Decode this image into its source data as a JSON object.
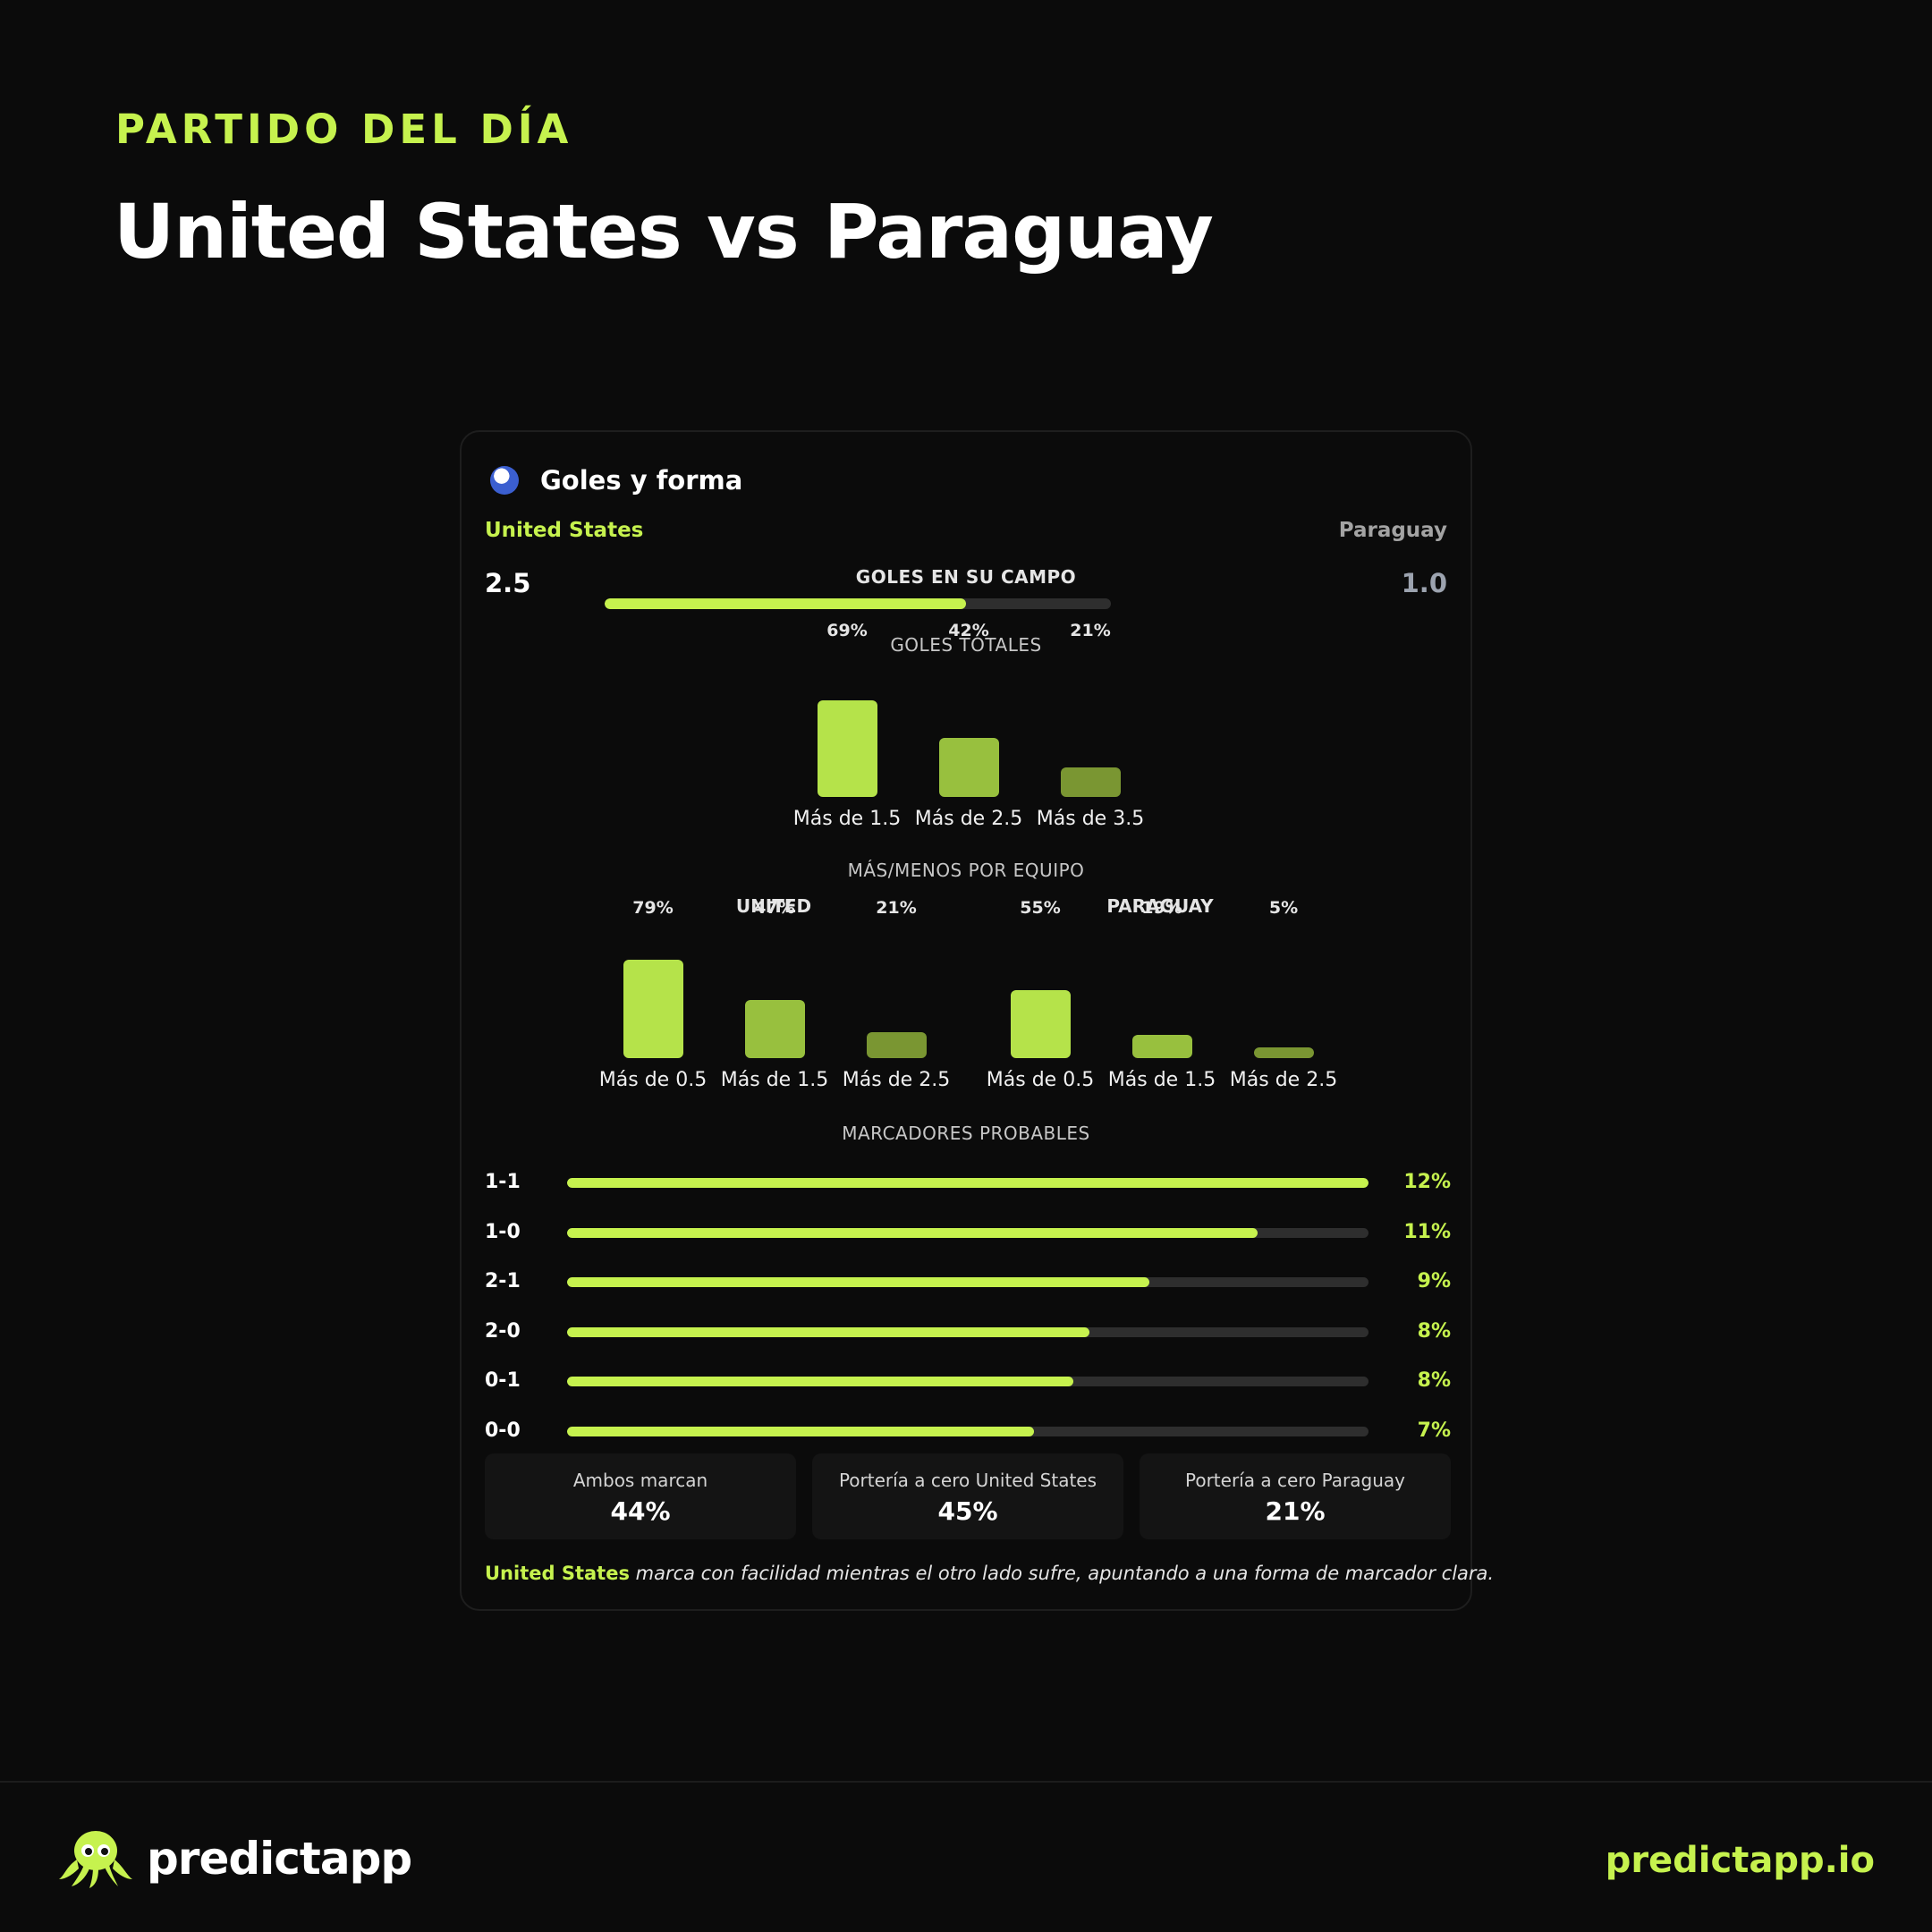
{
  "header": {
    "eyebrow": "PARTIDO DEL DÍA",
    "title": "United States vs Paraguay"
  },
  "card": {
    "title": "Goles y forma",
    "home_team": "United States",
    "away_team": "Paraguay",
    "goals_label": "GOLES EN SU CAMPO",
    "home_goals": "2.5",
    "away_goals": "1.0",
    "totals_label": "GOLES TOTALES",
    "team_ou_label": "MÁS/MENOS POR EQUIPO",
    "home_group_label": "UNITED",
    "away_group_label": "PARAGUAY",
    "scores_label": "MARCADORES PROBABLES",
    "stats": [
      {
        "label": "Ambos marcan",
        "value": "44%"
      },
      {
        "label": "Portería a cero United States",
        "value": "45%"
      },
      {
        "label": "Portería a cero Paraguay",
        "value": "21%"
      }
    ],
    "summary_team": "United States",
    "summary_text": " marca con facilidad mientras el otro lado sufre, apuntando a una forma de marcador clara."
  },
  "colors": {
    "accent": "#c6f24e",
    "bar_1": "#b5e34a",
    "bar_2": "#98c03e",
    "bar_3": "#7a9632",
    "track": "#2e2e2e"
  },
  "chart_data": [
    {
      "type": "bar",
      "id": "goals-share",
      "categories": [
        "United States",
        "Paraguay"
      ],
      "values": [
        2.5,
        1.0
      ],
      "title": "GOLES EN SU CAMPO"
    },
    {
      "type": "bar",
      "id": "total-goals",
      "title": "GOLES TOTALES",
      "categories": [
        "Más de 1.5",
        "Más de 2.5",
        "Más de 3.5"
      ],
      "values": [
        69,
        42,
        21
      ],
      "labels": [
        "69%",
        "42%",
        "21%"
      ],
      "ylim": [
        0,
        100
      ]
    },
    {
      "type": "bar",
      "id": "team-over-under",
      "title": "MÁS/MENOS POR EQUIPO",
      "categories": [
        "Más de 0.5",
        "Más de 1.5",
        "Más de 2.5"
      ],
      "series": [
        {
          "name": "UNITED",
          "values": [
            79,
            47,
            21
          ],
          "labels": [
            "79%",
            "47%",
            "21%"
          ]
        },
        {
          "name": "PARAGUAY",
          "values": [
            55,
            19,
            5
          ],
          "labels": [
            "55%",
            "19%",
            "5%"
          ]
        }
      ],
      "ylim": [
        0,
        100
      ]
    },
    {
      "type": "bar",
      "id": "likely-scores",
      "title": "MARCADORES PROBABLES",
      "categories": [
        "1-1",
        "1-0",
        "2-1",
        "2-0",
        "0-1",
        "0-0"
      ],
      "values": [
        12,
        11,
        9,
        8,
        8,
        7
      ],
      "labels": [
        "12%",
        "11%",
        "9%",
        "8%",
        "8%",
        "7%"
      ],
      "fill_fraction": [
        1.0,
        0.862,
        0.727,
        0.652,
        0.632,
        0.583
      ]
    }
  ],
  "footer": {
    "brand": "predictapp",
    "site": "predictapp.io"
  }
}
